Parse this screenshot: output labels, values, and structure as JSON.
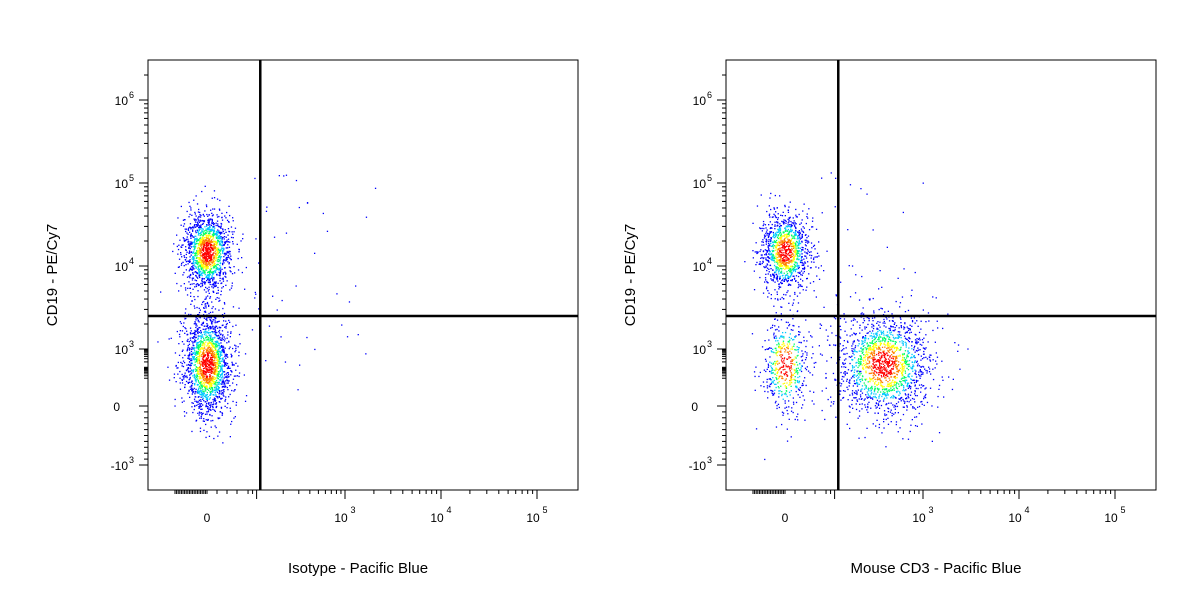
{
  "chart_data": [
    {
      "type": "scatter",
      "title": "",
      "xlabel": "Isotype - Pacific Blue",
      "ylabel": "CD19 - PE/Cy7",
      "x_scale": "biexponential",
      "y_scale": "biexponential",
      "x_tick_labels": [
        {
          "value": 0,
          "base": "0",
          "exp": ""
        },
        {
          "value": 1000,
          "base": "10",
          "exp": "3"
        },
        {
          "value": 10000,
          "base": "10",
          "exp": "4"
        },
        {
          "value": 100000,
          "base": "10",
          "exp": "5"
        }
      ],
      "y_tick_labels": [
        {
          "value": -1000,
          "base": "-10",
          "exp": "3"
        },
        {
          "value": 0,
          "base": "0",
          "exp": ""
        },
        {
          "value": 1000,
          "base": "10",
          "exp": "3"
        },
        {
          "value": 10000,
          "base": "10",
          "exp": "4"
        },
        {
          "value": 100000,
          "base": "10",
          "exp": "5"
        },
        {
          "value": 1000000,
          "base": "10",
          "exp": "6"
        }
      ],
      "quadrant_gate": {
        "x": 110,
        "y": 2500
      },
      "populations": [
        {
          "x_center": 0,
          "y_center": 15000,
          "relative_size": 0.45
        },
        {
          "x_center": 0,
          "y_center": 150,
          "relative_size": 0.55
        }
      ],
      "color_scale": [
        "#0000ff",
        "#00c8ff",
        "#00ff66",
        "#ffff00",
        "#ff7f00",
        "#ff0000"
      ],
      "grid": false,
      "legend": "none"
    },
    {
      "type": "scatter",
      "title": "",
      "xlabel": "Mouse CD3 - Pacific Blue",
      "ylabel": "CD19 - PE/Cy7",
      "x_scale": "biexponential",
      "y_scale": "biexponential",
      "x_tick_labels": [
        {
          "value": 0,
          "base": "0",
          "exp": ""
        },
        {
          "value": 1000,
          "base": "10",
          "exp": "3"
        },
        {
          "value": 10000,
          "base": "10",
          "exp": "4"
        },
        {
          "value": 100000,
          "base": "10",
          "exp": "5"
        }
      ],
      "y_tick_labels": [
        {
          "value": -1000,
          "base": "-10",
          "exp": "3"
        },
        {
          "value": 0,
          "base": "0",
          "exp": ""
        },
        {
          "value": 1000,
          "base": "10",
          "exp": "3"
        },
        {
          "value": 10000,
          "base": "10",
          "exp": "4"
        },
        {
          "value": 100000,
          "base": "10",
          "exp": "5"
        },
        {
          "value": 1000000,
          "base": "10",
          "exp": "6"
        }
      ],
      "quadrant_gate": {
        "x": 110,
        "y": 2500
      },
      "populations": [
        {
          "x_center": 0,
          "y_center": 15000,
          "relative_size": 0.35
        },
        {
          "x_center": 350,
          "y_center": 150,
          "relative_size": 0.5
        },
        {
          "x_center": 0,
          "y_center": 150,
          "relative_size": 0.15
        }
      ],
      "color_scale": [
        "#0000ff",
        "#00c8ff",
        "#00ff66",
        "#ffff00",
        "#ff7f00",
        "#ff0000"
      ],
      "grid": false,
      "legend": "none"
    }
  ]
}
